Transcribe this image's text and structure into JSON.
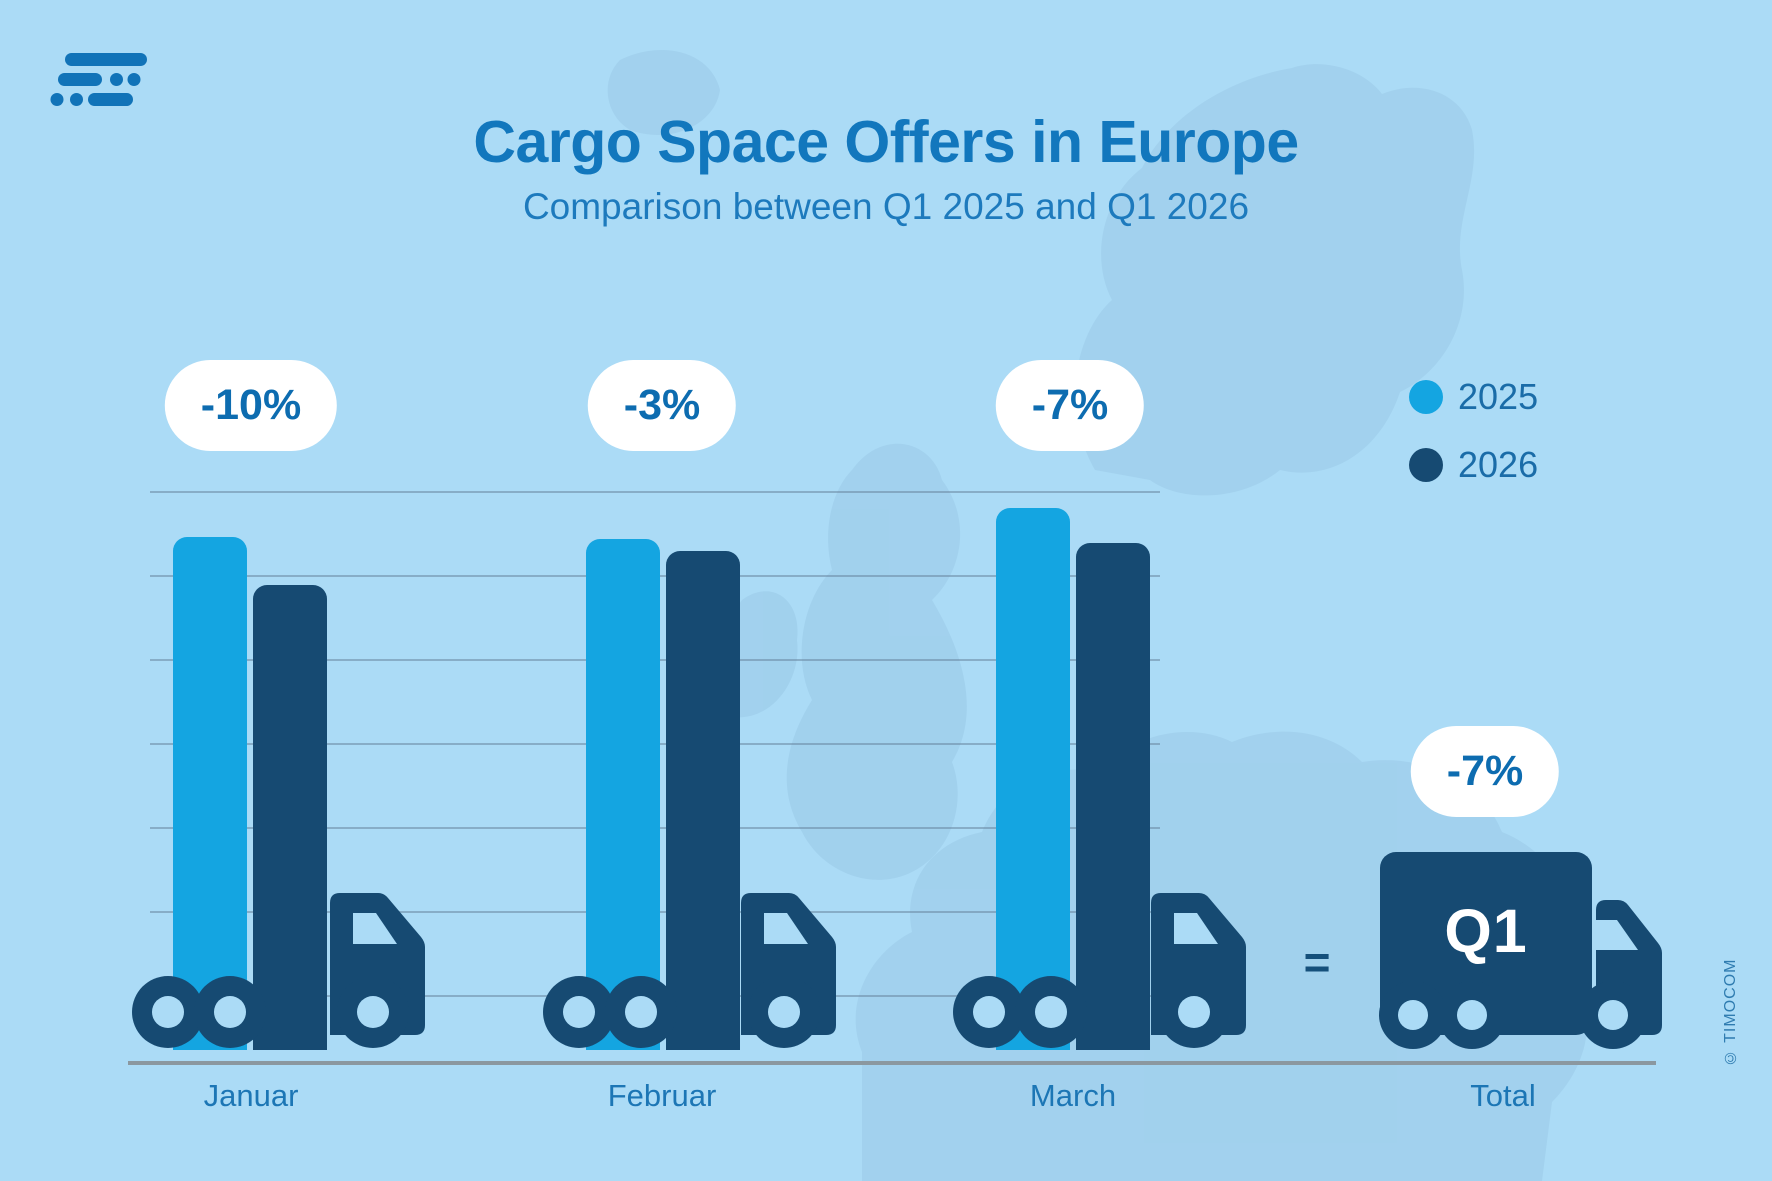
{
  "copyright": "© TIMOCOM",
  "equals_sign": "=",
  "header": {
    "title": "Cargo Space Offers in Europe",
    "subtitle": "Comparison between Q1 2025 and Q1 2026"
  },
  "logo": {
    "name": "timocom-logo",
    "color": "#1173b8"
  },
  "total": {
    "label": "Total",
    "truck_text": "Q1"
  },
  "chart_data": {
    "type": "bar",
    "title": "Cargo Space Offers in Europe",
    "subtitle": "Comparison between Q1 2025 and Q1 2026",
    "categories": [
      "Januar",
      "Februar",
      "March",
      "Total"
    ],
    "series": [
      {
        "name": "2025",
        "color": "#14a5e1",
        "values": [
          100,
          99.6,
          105.7
        ]
      },
      {
        "name": "2026",
        "color": "#164a72",
        "values": [
          90.6,
          97.3,
          98.8
        ]
      }
    ],
    "change_percent": {
      "Januar": "-10%",
      "Februar": "-3%",
      "March": "-7%",
      "Total": "-7%"
    },
    "unit": "index (Januar 2025 = 100), values estimated from bar heights",
    "ylabel": "",
    "xlabel": "",
    "grid": true,
    "gridline_count": 7,
    "legend_position": "top-right",
    "legend_entries": [
      "2025",
      "2026"
    ],
    "annotations": [
      "-10%",
      "-3%",
      "-7%",
      "-7%"
    ],
    "total_is_truck_pictogram": true
  },
  "colors": {
    "background": "#abdbf6",
    "map_watermark": "#9ccbe9",
    "bar_2025": "#14a5e1",
    "bar_2026": "#164a72",
    "title_text": "#1277bd",
    "badge_background": "#ffffff",
    "badge_text": "#0d6cb0",
    "gridline": "#6987a0",
    "axis_line": "#8b98a0",
    "truck_text": "#ffffff"
  }
}
